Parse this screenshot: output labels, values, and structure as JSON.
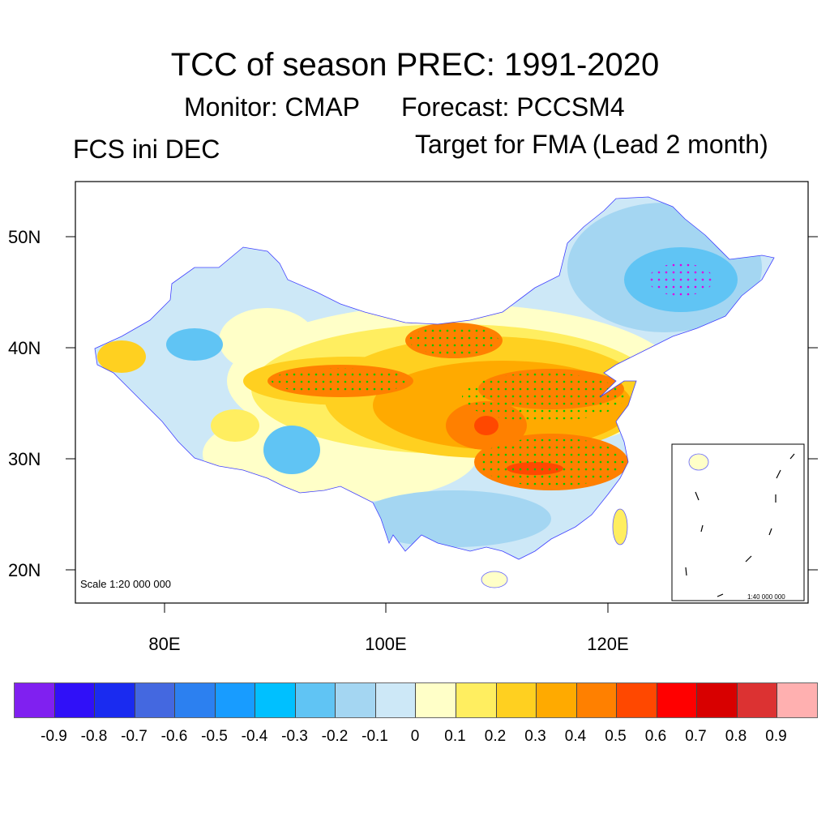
{
  "title": "TCC of season PREC: 1991-2020",
  "monitor": "Monitor: CMAP",
  "forecast": "Forecast: PCCSM4",
  "left_label": "FCS ini DEC",
  "right_label": "Target for FMA (Lead 2 month)",
  "lat_ticks": [
    "50N",
    "40N",
    "30N",
    "20N"
  ],
  "lon_ticks": [
    "80E",
    "100E",
    "120E"
  ],
  "scale_main": "Scale 1:20 000 000",
  "scale_inset": "1:40 000 000",
  "colorbar": {
    "colors": [
      "#8020F0",
      "#3010F8",
      "#1A2BF0",
      "#4468E0",
      "#2C80F0",
      "#189CFF",
      "#00C0FF",
      "#60C4F4",
      "#A4D6F2",
      "#CDE8F7",
      "#FFFFC8",
      "#FFEE60",
      "#FFD020",
      "#FFAA00",
      "#FF8000",
      "#FF4800",
      "#FF0000",
      "#D80000",
      "#DC3232",
      "#FFB0B0"
    ],
    "labels": [
      "-0.9",
      "-0.8",
      "-0.7",
      "-0.6",
      "-0.5",
      "-0.4",
      "-0.3",
      "-0.2",
      "-0.1",
      "0",
      "0.1",
      "0.2",
      "0.3",
      "0.4",
      "0.5",
      "0.6",
      "0.7",
      "0.8",
      "0.9"
    ]
  }
}
